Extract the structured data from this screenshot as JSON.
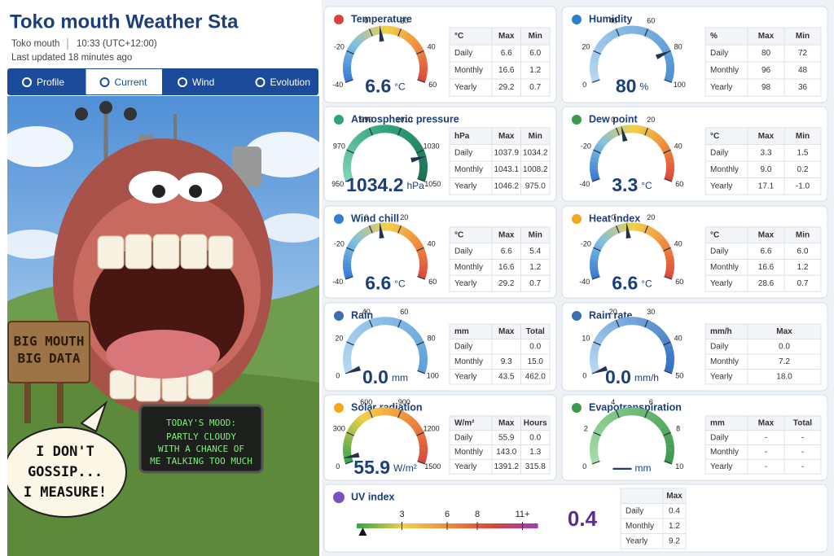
{
  "header": {
    "title": "Toko mouth Weather Sta",
    "location": "Toko mouth",
    "time": "10:33 (UTC+12:00)",
    "updated": "Last updated 18 minutes ago"
  },
  "tabs": [
    "Profile",
    "Current",
    "Wind",
    "Evolution"
  ],
  "illustration": {
    "sign": [
      "BIG MOUTH",
      "BIG DATA"
    ],
    "bubble": [
      "I DON'T",
      "GOSSIP...",
      "I MEASURE!"
    ],
    "screen": [
      "TODAY'S MOOD:",
      "PARTLY CLOUDY",
      "WITH A CHANCE OF",
      "ME TALKING TOO MUCH"
    ]
  },
  "cards": [
    {
      "title": "Temperature",
      "gauge": {
        "ticks": [
          -40,
          -20,
          0,
          20,
          40,
          60
        ],
        "value": 6.6,
        "unit": "°C",
        "colors": [
          "#3a7bd5",
          "#7fc0e0",
          "#f2d04a",
          "#f08a3c",
          "#d9443a"
        ]
      },
      "table": {
        "header": [
          "°C",
          "Max",
          "Min"
        ],
        "rows": [
          [
            "Daily",
            "6.6",
            "6.0"
          ],
          [
            "Monthly",
            "16.6",
            "1.2"
          ],
          [
            "Yearly",
            "29.2",
            "0.7"
          ]
        ]
      }
    },
    {
      "title": "Humidity",
      "gauge": {
        "ticks": [
          0,
          20,
          40,
          60,
          80,
          100
        ],
        "value": 80,
        "unit": "%",
        "colors": [
          "#b5d7f2",
          "#4a90d0"
        ]
      },
      "table": {
        "header": [
          "%",
          "Max",
          "Min"
        ],
        "rows": [
          [
            "Daily",
            "80",
            "72"
          ],
          [
            "Monthly",
            "96",
            "48"
          ],
          [
            "Yearly",
            "98",
            "36"
          ]
        ]
      }
    },
    {
      "title": "Atmospheric pressure",
      "gauge": {
        "ticks": [
          950,
          970,
          990,
          1010,
          1030,
          1050
        ],
        "value": 1034.2,
        "unit": "hPa",
        "colors": [
          "#7fd3b4",
          "#2fa37a",
          "#1a6e52"
        ]
      },
      "table": {
        "header": [
          "hPa",
          "Max",
          "Min"
        ],
        "rows": [
          [
            "Daily",
            "1037.9",
            "1034.2"
          ],
          [
            "Monthly",
            "1043.1",
            "1008.2"
          ],
          [
            "Yearly",
            "1046.2",
            "975.0"
          ]
        ]
      }
    },
    {
      "title": "Dew point",
      "gauge": {
        "ticks": [
          -40,
          -20,
          0,
          20,
          40,
          60
        ],
        "value": 3.3,
        "unit": "°C",
        "colors": [
          "#3a7bd5",
          "#7fc0e0",
          "#f2d04a",
          "#f08a3c",
          "#d9443a"
        ]
      },
      "table": {
        "header": [
          "°C",
          "Max",
          "Min"
        ],
        "rows": [
          [
            "Daily",
            "3.3",
            "1.5"
          ],
          [
            "Monthly",
            "9.0",
            "0.2"
          ],
          [
            "Yearly",
            "17.1",
            "-1.0"
          ]
        ]
      }
    },
    {
      "title": "Wind chill",
      "gauge": {
        "ticks": [
          -40,
          -20,
          0,
          20,
          40,
          60
        ],
        "value": 6.6,
        "unit": "°C",
        "colors": [
          "#3a7bd5",
          "#7fc0e0",
          "#f2d04a",
          "#f08a3c",
          "#d9443a"
        ]
      },
      "table": {
        "header": [
          "°C",
          "Max",
          "Min"
        ],
        "rows": [
          [
            "Daily",
            "6.6",
            "5.4"
          ],
          [
            "Monthly",
            "16.6",
            "1.2"
          ],
          [
            "Yearly",
            "29.2",
            "0.7"
          ]
        ]
      }
    },
    {
      "title": "Heat index",
      "gauge": {
        "ticks": [
          -40,
          -20,
          0,
          20,
          40,
          60
        ],
        "value": 6.6,
        "unit": "°C",
        "colors": [
          "#3a7bd5",
          "#7fc0e0",
          "#f2d04a",
          "#f08a3c",
          "#d9443a"
        ]
      },
      "table": {
        "header": [
          "°C",
          "Max",
          "Min"
        ],
        "rows": [
          [
            "Daily",
            "6.6",
            "6.0"
          ],
          [
            "Monthly",
            "16.6",
            "1.2"
          ],
          [
            "Yearly",
            "28.6",
            "0.7"
          ]
        ]
      }
    },
    {
      "title": "Rain",
      "gauge": {
        "ticks": [
          0,
          20,
          40,
          60,
          80,
          100
        ],
        "value": 0,
        "value_label": "0.0",
        "unit": "mm",
        "colors": [
          "#b5d7f2",
          "#5a9fd8"
        ]
      },
      "table": {
        "header": [
          "mm",
          "Max",
          "Total"
        ],
        "rows": [
          [
            "Daily",
            "",
            "0.0"
          ],
          [
            "Monthly",
            "9.3",
            "15.0"
          ],
          [
            "Yearly",
            "43.5",
            "462.0"
          ]
        ]
      }
    },
    {
      "title": "Rain rate",
      "gauge": {
        "ticks": [
          0,
          10,
          20,
          30,
          40,
          50
        ],
        "value": 0,
        "value_label": "0.0",
        "unit": "mm/h",
        "colors": [
          "#b5d7f2",
          "#2f6fc0"
        ]
      },
      "table": {
        "header": [
          "mm/h",
          "Max"
        ],
        "rows": [
          [
            "Daily",
            "0.0"
          ],
          [
            "Monthly",
            "7.2"
          ],
          [
            "Yearly",
            "18.0"
          ]
        ]
      }
    },
    {
      "title": "Solar radiation",
      "gauge": {
        "ticks": [
          0,
          300,
          600,
          900,
          1200,
          1500
        ],
        "value": 55.9,
        "unit": "W/m²",
        "colors": [
          "#3aa64a",
          "#f2d04a",
          "#f08a3c",
          "#d9443a"
        ]
      },
      "table": {
        "header": [
          "W/m²",
          "Max",
          "Hours"
        ],
        "rows": [
          [
            "Daily",
            "55.9",
            "0.0"
          ],
          [
            "Monthly",
            "143.0",
            "1.3"
          ],
          [
            "Yearly",
            "1391.2",
            "315.8"
          ]
        ]
      }
    },
    {
      "title": "Evapotranspiration",
      "gauge": {
        "ticks": [
          0,
          2,
          4,
          6,
          8,
          10
        ],
        "value": null,
        "value_label": "—",
        "unit": "mm",
        "colors": [
          "#a6dca6",
          "#3a9a4a"
        ]
      },
      "table": {
        "header": [
          "mm",
          "Max",
          "Total"
        ],
        "rows": [
          [
            "Daily",
            "-",
            "-"
          ],
          [
            "Monthly",
            "-",
            "-"
          ],
          [
            "Yearly",
            "-",
            "-"
          ]
        ]
      }
    }
  ],
  "uv": {
    "title": "UV index",
    "ticks": [
      3,
      6,
      8,
      {
        "value": 11,
        "label": "11+"
      }
    ],
    "xlim": [
      0,
      12
    ],
    "value": 0.4,
    "colors": [
      "#3aa64a",
      "#f2d04a",
      "#f08a3c",
      "#d9443a",
      "#9b3fb5"
    ],
    "table": {
      "header": [
        "",
        "Max"
      ],
      "rows": [
        [
          "Daily",
          "0.4"
        ],
        [
          "Monthly",
          "1.2"
        ],
        [
          "Yearly",
          "9.2"
        ]
      ]
    }
  }
}
